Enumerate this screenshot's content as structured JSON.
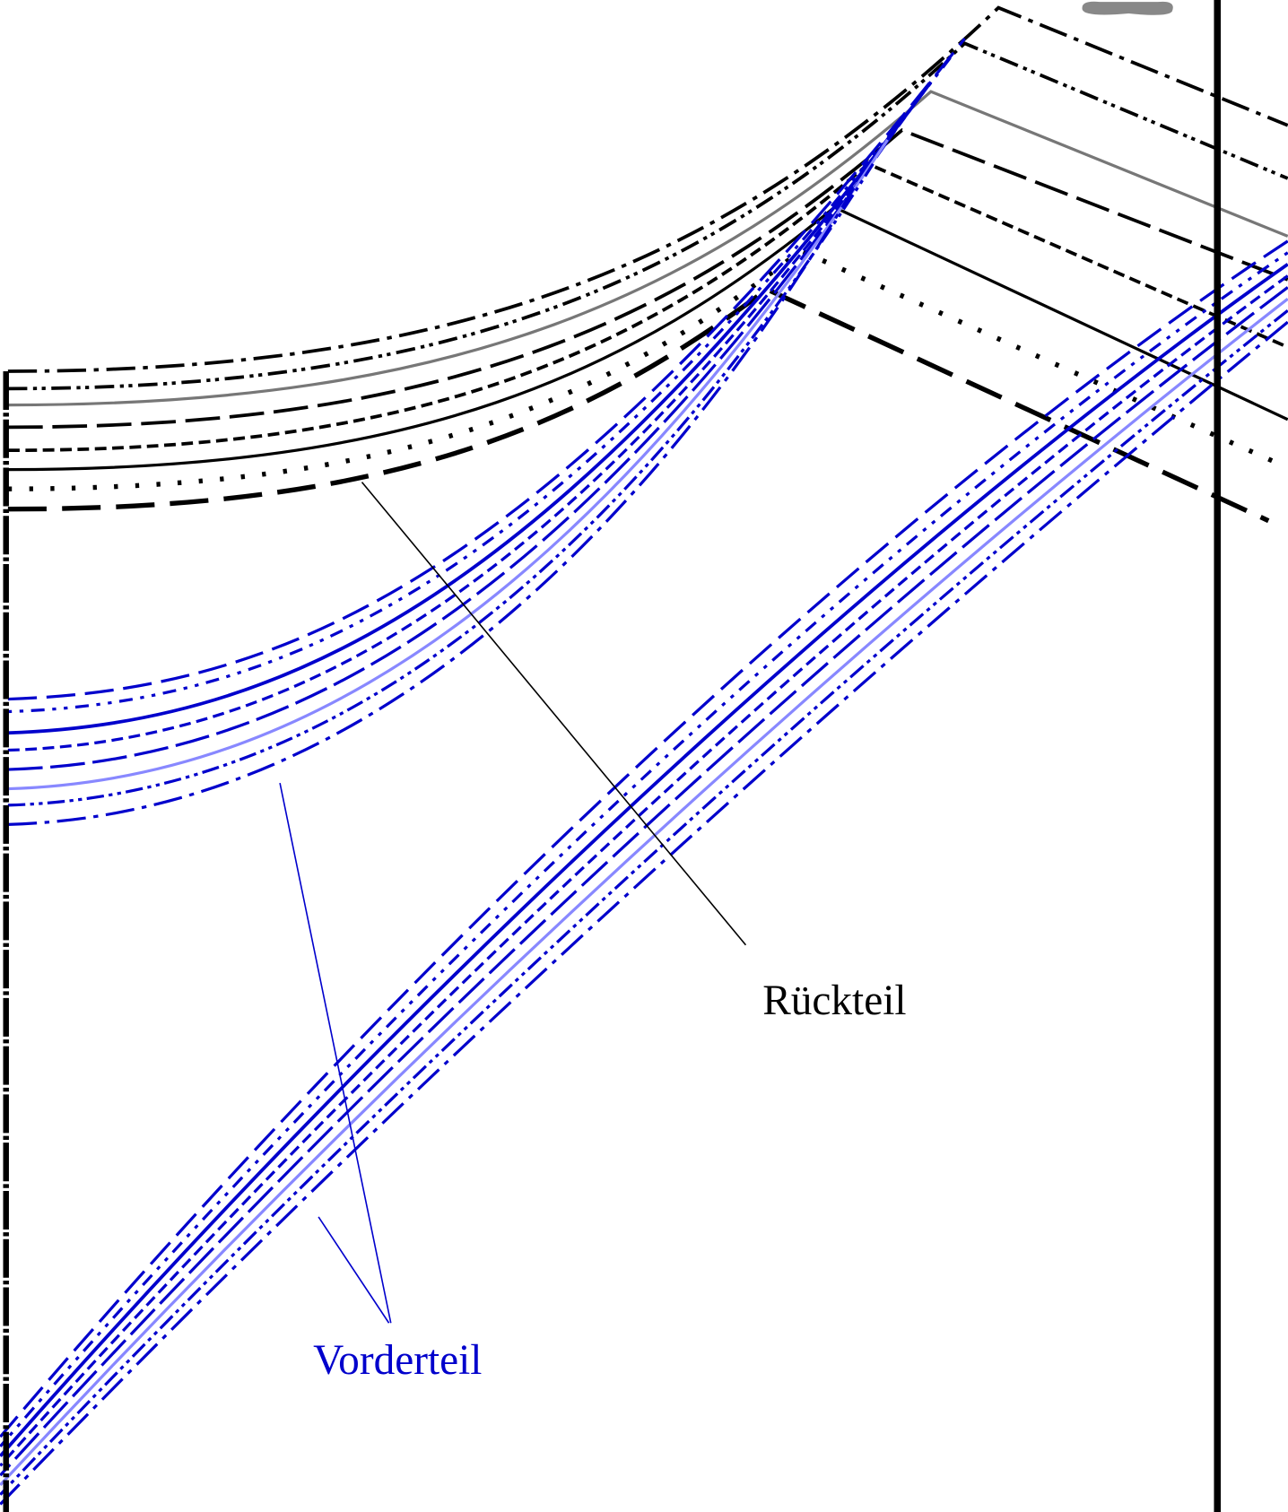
{
  "labels": {
    "back": "Rückteil",
    "front": "Vorderteil"
  }
}
